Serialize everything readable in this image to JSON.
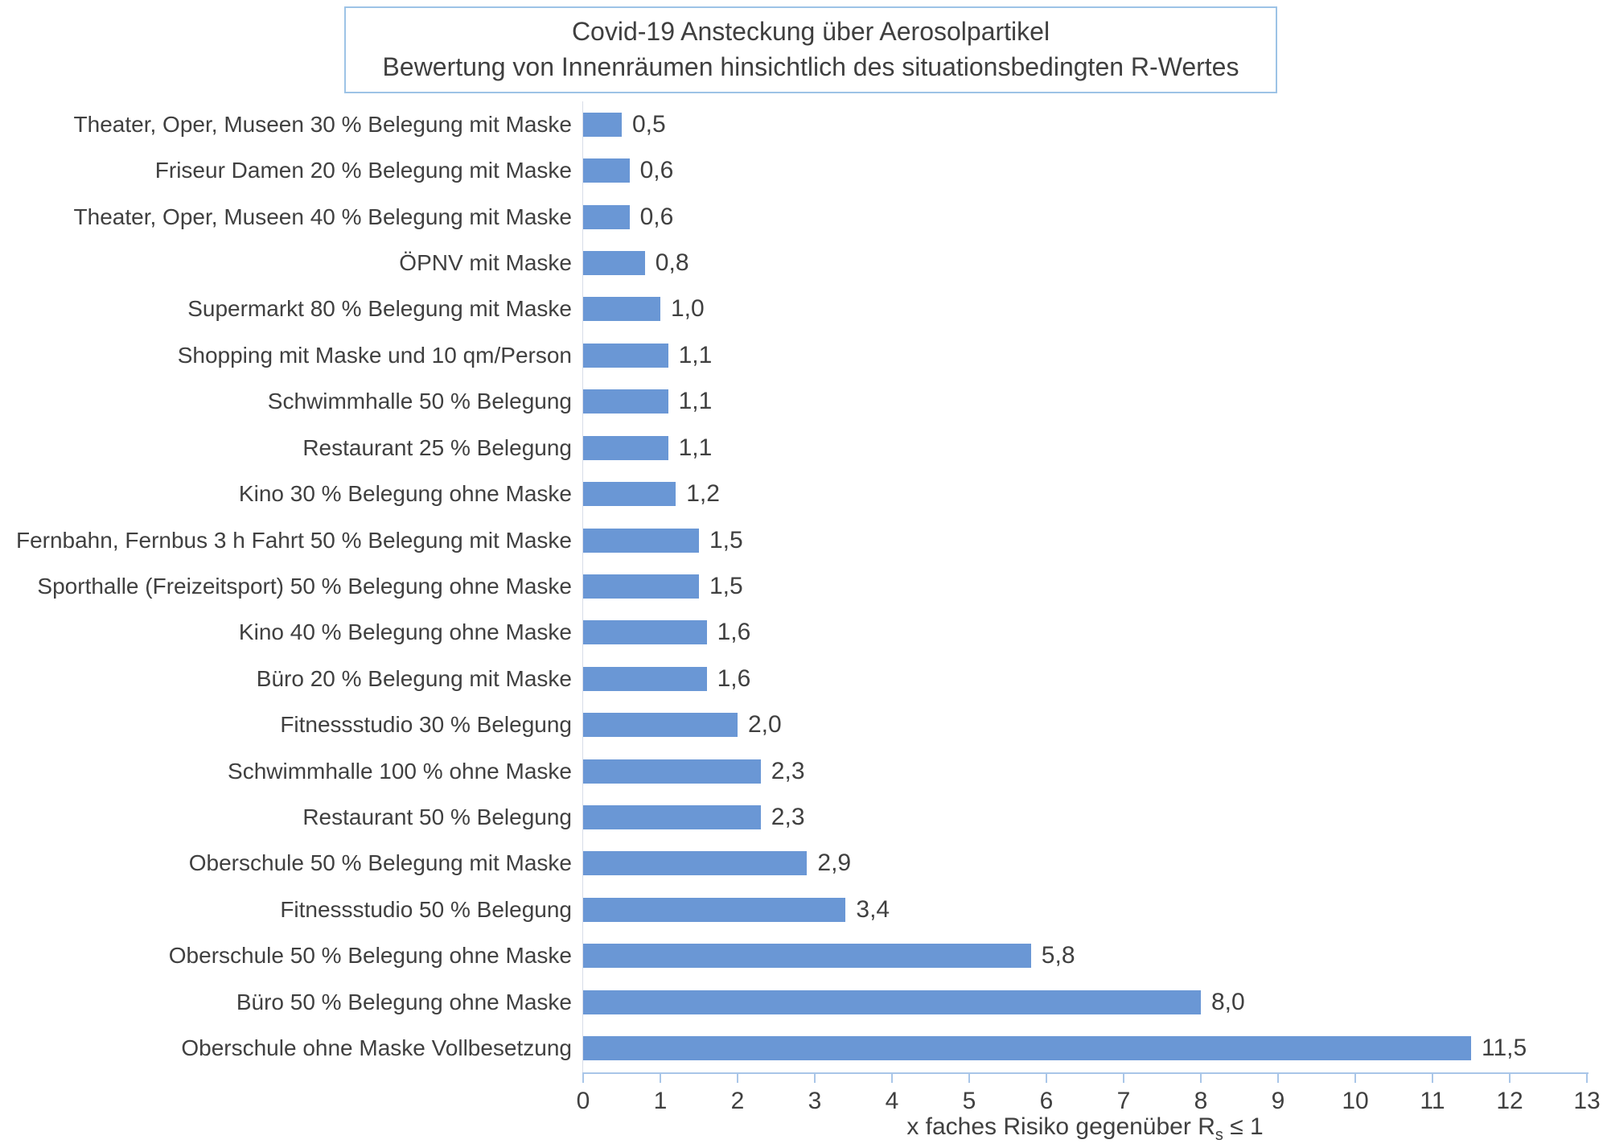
{
  "chart_data": {
    "type": "bar",
    "orientation": "horizontal",
    "title_line1": "Covid-19 Ansteckung über Aerosolpartikel",
    "title_line2": "Bewertung von Innenräumen hinsichtlich des situationsbedingten R-Wertes",
    "categories": [
      "Theater, Oper, Museen 30 % Belegung mit Maske",
      "Friseur Damen 20 % Belegung mit Maske",
      "Theater, Oper, Museen 40 % Belegung mit Maske",
      "ÖPNV mit Maske",
      "Supermarkt 80 % Belegung mit Maske",
      "Shopping mit Maske und 10 qm/Person",
      "Schwimmhalle 50 % Belegung",
      "Restaurant 25 % Belegung",
      "Kino 30 % Belegung ohne Maske",
      "Fernbahn, Fernbus 3 h Fahrt 50 % Belegung mit Maske",
      "Sporthalle  (Freizeitsport) 50 % Belegung ohne Maske",
      "Kino 40 % Belegung ohne Maske",
      "Büro 20 % Belegung mit Maske",
      "Fitnessstudio 30 % Belegung",
      "Schwimmhalle 100 % ohne Maske",
      "Restaurant 50 % Belegung",
      "Oberschule 50 % Belegung mit Maske",
      "Fitnessstudio 50 % Belegung",
      "Oberschule 50 % Belegung ohne Maske",
      "Büro 50 % Belegung ohne Maske",
      "Oberschule ohne Maske Vollbesetzung"
    ],
    "values": [
      0.5,
      0.6,
      0.6,
      0.8,
      1.0,
      1.1,
      1.1,
      1.1,
      1.2,
      1.5,
      1.5,
      1.6,
      1.6,
      2.0,
      2.3,
      2.3,
      2.9,
      3.4,
      5.8,
      8.0,
      11.5
    ],
    "value_labels": [
      "0,5",
      "0,6",
      "0,6",
      "0,8",
      "1,0",
      "1,1",
      "1,1",
      "1,1",
      "1,2",
      "1,5",
      "1,5",
      "1,6",
      "1,6",
      "2,0",
      "2,3",
      "2,3",
      "2,9",
      "3,4",
      "5,8",
      "8,0",
      "11,5"
    ],
    "xlabel_prefix": "x faches Risiko gegenüber R",
    "xlabel_sub": "s",
    "xlabel_suffix": " ≤ 1",
    "xlim": [
      0,
      13
    ],
    "x_ticks": [
      0,
      1,
      2,
      3,
      4,
      5,
      6,
      7,
      8,
      9,
      10,
      11,
      12,
      13
    ],
    "grid": false,
    "legend": "none",
    "bar_color": "#6a97d5",
    "axis_color": "#a9c6e8",
    "category_axis_color": "#d8dde8",
    "text_color": "#404040",
    "title_border_color": "#9dc3e6"
  }
}
